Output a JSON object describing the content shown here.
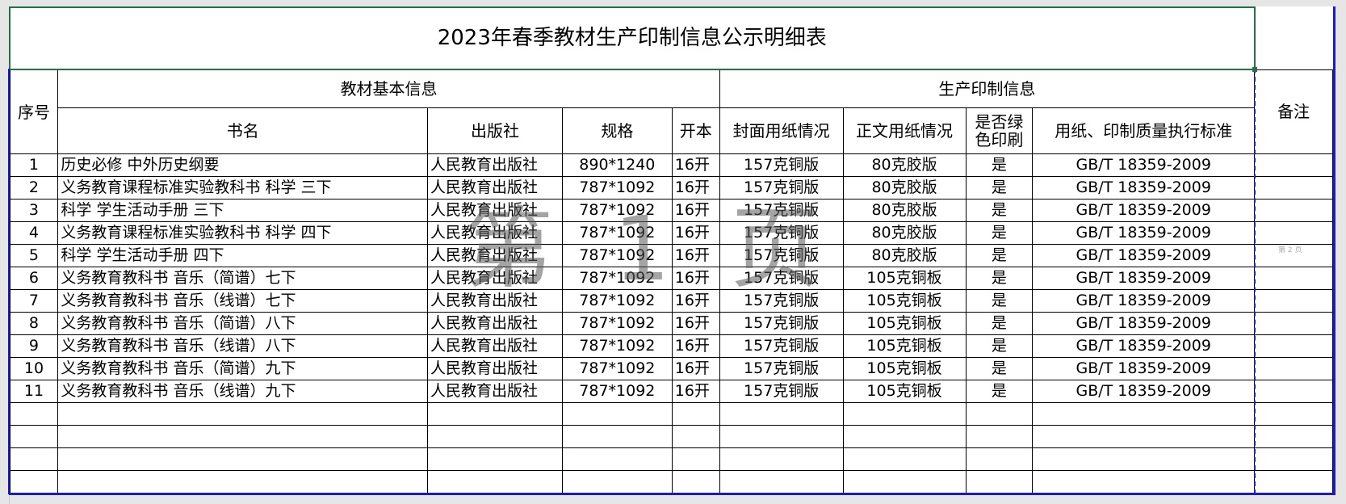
{
  "title": "2023年春季教材生产印制信息公示明细表",
  "headers": {
    "seq": "序号",
    "group_basic": "教材基本信息",
    "group_print": "生产印制信息",
    "remark": "备注",
    "book_name": "书名",
    "publisher": "出版社",
    "spec": "规格",
    "format": "开本",
    "cover_paper": "封面用纸情况",
    "body_paper": "正文用纸情况",
    "green_print": "是否绿色印刷",
    "standard": "用纸、印制质量执行标准"
  },
  "rows": [
    {
      "seq": "1",
      "name": "历史必修 中外历史纲要",
      "publisher": "人民教育出版社",
      "spec": "890*1240",
      "format": "16开",
      "cover": "157克铜版",
      "body": "80克胶版",
      "green": "是",
      "standard": "GB/T 18359-2009"
    },
    {
      "seq": "2",
      "name": "义务教育课程标准实验教科书 科学 三下",
      "publisher": "人民教育出版社",
      "spec": "787*1092",
      "format": "16开",
      "cover": "157克铜版",
      "body": "80克胶版",
      "green": "是",
      "standard": "GB/T 18359-2009"
    },
    {
      "seq": "3",
      "name": "科学 学生活动手册 三下",
      "publisher": "人民教育出版社",
      "spec": "787*1092",
      "format": "16开",
      "cover": "157克铜版",
      "body": "80克胶版",
      "green": "是",
      "standard": "GB/T 18359-2009"
    },
    {
      "seq": "4",
      "name": "义务教育课程标准实验教科书 科学 四下",
      "publisher": "人民教育出版社",
      "spec": "787*1092",
      "format": "16开",
      "cover": "157克铜版",
      "body": "80克胶版",
      "green": "是",
      "standard": "GB/T 18359-2009"
    },
    {
      "seq": "5",
      "name": "科学 学生活动手册 四下",
      "publisher": "人民教育出版社",
      "spec": "787*1092",
      "format": "16开",
      "cover": "157克铜版",
      "body": "80克胶版",
      "green": "是",
      "standard": "GB/T 18359-2009"
    },
    {
      "seq": "6",
      "name": "义务教育教科书 音乐（简谱）七下",
      "publisher": "人民教育出版社",
      "spec": "787*1092",
      "format": "16开",
      "cover": "157克铜版",
      "body": "105克铜板",
      "green": "是",
      "standard": "GB/T 18359-2009"
    },
    {
      "seq": "7",
      "name": "义务教育教科书 音乐（线谱）七下",
      "publisher": "人民教育出版社",
      "spec": "787*1092",
      "format": "16开",
      "cover": "157克铜版",
      "body": "105克铜板",
      "green": "是",
      "standard": "GB/T 18359-2009"
    },
    {
      "seq": "8",
      "name": "义务教育教科书 音乐（简谱）八下",
      "publisher": "人民教育出版社",
      "spec": "787*1092",
      "format": "16开",
      "cover": "157克铜版",
      "body": "105克铜板",
      "green": "是",
      "standard": "GB/T 18359-2009"
    },
    {
      "seq": "9",
      "name": "义务教育教科书 音乐（线谱）八下",
      "publisher": "人民教育出版社",
      "spec": "787*1092",
      "format": "16开",
      "cover": "157克铜版",
      "body": "105克铜板",
      "green": "是",
      "standard": "GB/T 18359-2009"
    },
    {
      "seq": "10",
      "name": "义务教育教科书 音乐（简谱）九下",
      "publisher": "人民教育出版社",
      "spec": "787*1092",
      "format": "16开",
      "cover": "157克铜版",
      "body": "105克铜板",
      "green": "是",
      "standard": "GB/T 18359-2009"
    },
    {
      "seq": "11",
      "name": "义务教育教科书 音乐（线谱）九下",
      "publisher": "人民教育出版社",
      "spec": "787*1092",
      "format": "16开",
      "cover": "157克铜版",
      "body": "105克铜板",
      "green": "是",
      "standard": "GB/T 18359-2009"
    }
  ],
  "empty_rows": 4,
  "watermark": "第 1 页",
  "watermark_page2": "第 2 页",
  "colors": {
    "selection": "#217346",
    "page_break": "#1a1acc"
  }
}
